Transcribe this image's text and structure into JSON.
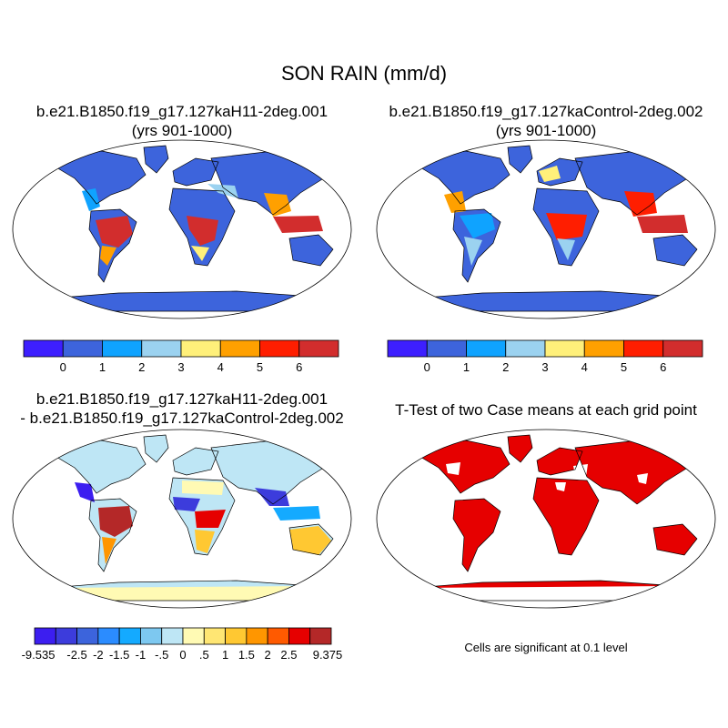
{
  "title": "SON RAIN (mm/d)",
  "panels": [
    {
      "id": "case1",
      "title_line1": "b.e21.B1850.f19_g17.127kaH11-2deg.001",
      "title_line2": "(yrs 901-1000)"
    },
    {
      "id": "case2",
      "title_line1": "b.e21.B1850.f19_g17.127kaControl-2deg.002",
      "title_line2": "(yrs 901-1000)"
    },
    {
      "id": "diff",
      "title_line1": "b.e21.B1850.f19_g17.127kaH11-2deg.001",
      "title_line2": "- b.e21.B1850.f19_g17.127kaControl-2deg.002"
    },
    {
      "id": "ttest",
      "title_line1": "T-Test of two Case means at each grid point",
      "title_line2": ""
    }
  ],
  "colorbar_rain": {
    "colors": [
      "#3d1fff",
      "#3d64dc",
      "#0fa3ff",
      "#9bd2f0",
      "#fff07a",
      "#ffa000",
      "#ff1e00",
      "#d22d2d"
    ],
    "labels": [
      "0",
      "1",
      "2",
      "3",
      "4",
      "5",
      "6"
    ]
  },
  "colorbar_diff": {
    "colors": [
      "#3c1ef0",
      "#3c3cdc",
      "#3c64dc",
      "#2b8cff",
      "#14aaff",
      "#7dc8f0",
      "#bee6f5",
      "#fffab4",
      "#ffe673",
      "#ffc832",
      "#ff9600",
      "#ff5a00",
      "#e60000",
      "#b42828"
    ],
    "labels": [
      "-9.535",
      "-2.5",
      "-2",
      "-1.5",
      "-1",
      "-.5",
      "0",
      ".5",
      "1",
      "1.5",
      "2",
      "2.5",
      "9.375"
    ]
  },
  "significance_note": "Cells are significant at 0.1 level",
  "map_colors": {
    "rain_background": "#3d64dc",
    "diff_background": "#bee6f5",
    "ttest_fill": "#e60000",
    "outline": "#000000"
  }
}
